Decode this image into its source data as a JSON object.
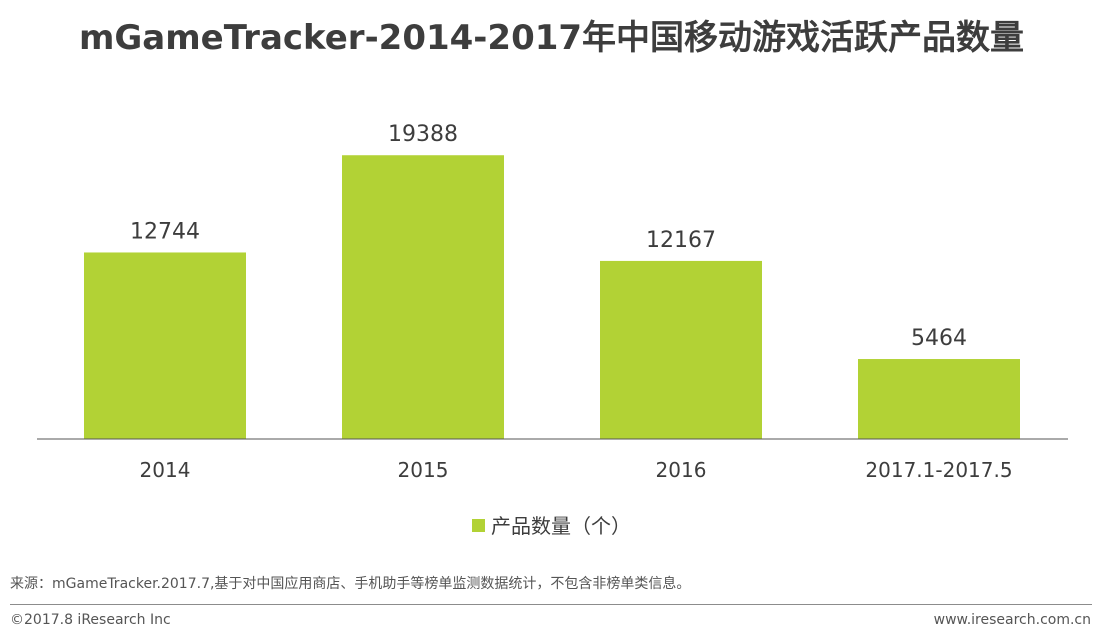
{
  "title": "mGameTracker-2014-2017年中国移动游戏活跃产品数量",
  "chart_data": {
    "type": "bar",
    "categories": [
      "2014",
      "2015",
      "2016",
      "2017.1-2017.5"
    ],
    "series": [
      {
        "name": "产品数量（个）",
        "values": [
          12744,
          19388,
          12167,
          5464
        ],
        "color": "#b2d235"
      }
    ],
    "ylim": [
      0,
      22000
    ],
    "grid": false,
    "legend": "bottom-center",
    "xlabel": "",
    "ylabel": ""
  },
  "source": "来源：mGameTracker.2017.7,基于对中国应用商店、手机助手等榜单监测数据统计，不包含非榜单类信息。",
  "copyright": "©2017.8 iResearch Inc",
  "website": "www.iresearch.com.cn",
  "colors": {
    "bar": "#b2d235",
    "axis": "#555555",
    "text": "#3d3d3d"
  }
}
